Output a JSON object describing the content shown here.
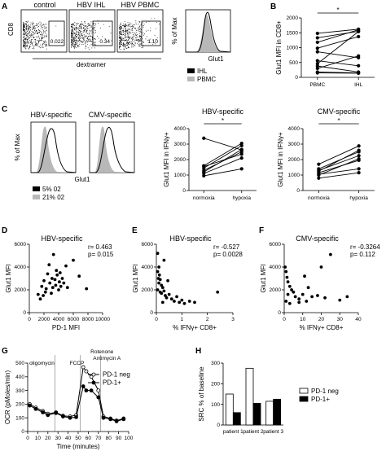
{
  "panels": {
    "A": {
      "label": "A",
      "flow": {
        "plot_titles": [
          "control",
          "HBV IHL",
          "HBV PBMC"
        ],
        "gate_values": [
          "0.022",
          "0.34",
          "1.10"
        ],
        "ylabel": "CD8",
        "xlabel": "dextramer"
      },
      "histogram": {
        "ylabel": "% of Max",
        "xlabel": "Glut1",
        "legend": [
          "IHL",
          "PBMC"
        ],
        "colors": {
          "IHL": "#000000",
          "PBMC": "#b8b8b8"
        }
      }
    },
    "B": {
      "label": "B"
    },
    "C": {
      "label": "C",
      "histogram_titles": [
        "HBV-specific",
        "CMV-specific"
      ],
      "histogram_ylabel": "% of Max",
      "histogram_xlabel": "Glut1",
      "legend": [
        "5% 02",
        "21% 02"
      ]
    },
    "D": {
      "label": "D"
    },
    "E": {
      "label": "E"
    },
    "F": {
      "label": "F"
    },
    "G": {
      "label": "G",
      "phases": [
        "oligomycin",
        "FCCP",
        "Rotenone",
        "Antimycin A"
      ]
    },
    "H": {
      "label": "H"
    }
  },
  "chart_data": [
    {
      "id": "B",
      "type": "line",
      "subtype": "paired",
      "categories": [
        "PBMC",
        "IHL"
      ],
      "ylabel": "Glut1 MFI in CD8+",
      "ylim": [
        0,
        2000
      ],
      "yticks": [
        0,
        500,
        1000,
        1500,
        2000
      ],
      "significance": "*",
      "pairs": [
        [
          1480,
          1620
        ],
        [
          1330,
          1550
        ],
        [
          1180,
          1600
        ],
        [
          980,
          1370
        ],
        [
          860,
          660
        ],
        [
          560,
          390
        ],
        [
          460,
          1540
        ],
        [
          380,
          180
        ],
        [
          300,
          720
        ],
        [
          180,
          150
        ],
        [
          150,
          140
        ]
      ]
    },
    {
      "id": "C-HBV",
      "type": "line",
      "subtype": "paired",
      "title": "HBV-specific",
      "categories": [
        "normoxia",
        "hypoxia"
      ],
      "ylabel": "Glut1 MFI in IFNγ+",
      "ylim": [
        0,
        4000
      ],
      "yticks": [
        0,
        1000,
        2000,
        3000,
        4000
      ],
      "significance": "*",
      "pairs": [
        [
          3380,
          2620
        ],
        [
          1600,
          3050
        ],
        [
          1550,
          2350
        ],
        [
          1450,
          2900
        ],
        [
          1300,
          2500
        ],
        [
          1200,
          2650
        ],
        [
          1100,
          2100
        ],
        [
          950,
          1400
        ]
      ]
    },
    {
      "id": "C-CMV",
      "type": "line",
      "subtype": "paired",
      "title": "CMV-specific",
      "categories": [
        "normoxia",
        "hypoxia"
      ],
      "ylabel": "Glut1 MFI in IFNγ+",
      "ylim": [
        0,
        4000
      ],
      "yticks": [
        0,
        1000,
        2000,
        3000,
        4000
      ],
      "significance": "*",
      "pairs": [
        [
          1700,
          2880
        ],
        [
          1400,
          2500
        ],
        [
          1300,
          2250
        ],
        [
          1250,
          2600
        ],
        [
          1150,
          1950
        ],
        [
          1050,
          1400
        ],
        [
          1000,
          2050
        ],
        [
          800,
          1150
        ]
      ]
    },
    {
      "id": "D",
      "type": "scatter",
      "title": "HBV-specific",
      "xlabel": "PD-1 MFI",
      "ylabel": "Glut1 MFI",
      "xlim": [
        0,
        10000
      ],
      "xticks": [
        0,
        2000,
        4000,
        6000,
        8000,
        10000
      ],
      "ylim": [
        0,
        6000
      ],
      "yticks": [
        0,
        2000,
        4000,
        6000
      ],
      "stats": [
        "r= 0.463",
        "p= 0.015"
      ],
      "points": [
        [
          1200,
          1600
        ],
        [
          1500,
          1200
        ],
        [
          1700,
          2300
        ],
        [
          1900,
          1500
        ],
        [
          2000,
          2800
        ],
        [
          2200,
          1800
        ],
        [
          2300,
          2100
        ],
        [
          2500,
          3400
        ],
        [
          2700,
          4200
        ],
        [
          2800,
          2600
        ],
        [
          3000,
          1700
        ],
        [
          3100,
          3000
        ],
        [
          3200,
          2200
        ],
        [
          3300,
          5100
        ],
        [
          3500,
          2900
        ],
        [
          3600,
          2400
        ],
        [
          3700,
          3700
        ],
        [
          3800,
          3300
        ],
        [
          4000,
          2000
        ],
        [
          4100,
          2700
        ],
        [
          4200,
          3500
        ],
        [
          4300,
          2300
        ],
        [
          4500,
          3000
        ],
        [
          4700,
          2600
        ],
        [
          5000,
          4100
        ],
        [
          5200,
          2200
        ],
        [
          6000,
          4600
        ],
        [
          6800,
          3200
        ],
        [
          7800,
          2100
        ]
      ]
    },
    {
      "id": "E",
      "type": "scatter",
      "title": "HBV-specific",
      "xlabel": "% IFNγ+ CD8+",
      "ylabel": "Glut1 MFI",
      "xlim": [
        0,
        3
      ],
      "xticks": [
        0,
        1,
        2,
        3
      ],
      "ylim": [
        0,
        6000
      ],
      "yticks": [
        0,
        2000,
        4000,
        6000
      ],
      "stats": [
        "r= -0.527",
        "p= 0.0028"
      ],
      "points": [
        [
          0.05,
          5200
        ],
        [
          0.1,
          4000
        ],
        [
          0.05,
          3600
        ],
        [
          0.12,
          3300
        ],
        [
          0.08,
          3000
        ],
        [
          0.15,
          2900
        ],
        [
          0.1,
          2600
        ],
        [
          0.2,
          2400
        ],
        [
          0.25,
          2200
        ],
        [
          0.05,
          2000
        ],
        [
          0.3,
          1900
        ],
        [
          0.2,
          1700
        ],
        [
          0.35,
          1500
        ],
        [
          0.4,
          1300
        ],
        [
          0.5,
          1600
        ],
        [
          0.3,
          4600
        ],
        [
          0.15,
          1800
        ],
        [
          0.6,
          1200
        ],
        [
          0.7,
          1000
        ],
        [
          0.8,
          1400
        ],
        [
          0.9,
          900
        ],
        [
          1.0,
          1100
        ],
        [
          1.1,
          800
        ],
        [
          1.3,
          1000
        ],
        [
          1.5,
          900
        ],
        [
          0.45,
          2800
        ],
        [
          0.25,
          900
        ],
        [
          2.4,
          1800
        ]
      ]
    },
    {
      "id": "F",
      "type": "scatter",
      "title": "CMV-specific",
      "xlabel": "% IFNγ+ CD8+",
      "ylabel": "Glut1 MFI",
      "xlim": [
        0,
        40
      ],
      "xticks": [
        0,
        10,
        20,
        30,
        40
      ],
      "ylim": [
        0,
        6000
      ],
      "yticks": [
        0,
        2000,
        4000,
        6000
      ],
      "stats": [
        "r= -0.3264",
        "p= 0.112"
      ],
      "points": [
        [
          0.5,
          4000
        ],
        [
          1,
          3600
        ],
        [
          1.5,
          3100
        ],
        [
          2,
          2700
        ],
        [
          3,
          2300
        ],
        [
          4,
          2000
        ],
        [
          2,
          1600
        ],
        [
          5,
          1800
        ],
        [
          6,
          1400
        ],
        [
          1,
          1000
        ],
        [
          8,
          1200
        ],
        [
          10,
          1600
        ],
        [
          11,
          3200
        ],
        [
          12,
          1000
        ],
        [
          13,
          2200
        ],
        [
          15,
          1400
        ],
        [
          18,
          1500
        ],
        [
          20,
          4000
        ],
        [
          22,
          1300
        ],
        [
          25,
          5100
        ],
        [
          30,
          1100
        ],
        [
          34,
          1400
        ],
        [
          8,
          900
        ],
        [
          3,
          800
        ]
      ]
    },
    {
      "id": "G",
      "type": "line",
      "xlabel": "Time (minutes)",
      "ylabel": "OCR (pMoles/min)",
      "xlim": [
        0,
        100
      ],
      "xticks": [
        0,
        10,
        20,
        30,
        40,
        50,
        60,
        70,
        80,
        90,
        100
      ],
      "ylim": [
        0,
        500
      ],
      "yticks": [
        0,
        100,
        200,
        300,
        400,
        500
      ],
      "injections": [
        27,
        52,
        72
      ],
      "series": [
        {
          "name": "PD-1 neg",
          "marker": "open-circle",
          "x": [
            2,
            8,
            15,
            20,
            28,
            35,
            42,
            48,
            55,
            58,
            63,
            70,
            75,
            82,
            88,
            95
          ],
          "y": [
            200,
            175,
            150,
            130,
            140,
            115,
            110,
            120,
            470,
            440,
            400,
            300,
            110,
            95,
            80,
            95
          ]
        },
        {
          "name": "PD-1+",
          "marker": "filled-circle",
          "x": [
            2,
            8,
            15,
            20,
            28,
            35,
            42,
            48,
            55,
            58,
            63,
            70,
            75,
            82,
            88,
            95
          ],
          "y": [
            190,
            165,
            140,
            120,
            135,
            110,
            100,
            105,
            330,
            300,
            300,
            250,
            100,
            90,
            75,
            90
          ]
        }
      ]
    },
    {
      "id": "H",
      "type": "bar",
      "ylabel": "SRC % of baseline",
      "categories": [
        "patient 1",
        "patient 2",
        "patient 3"
      ],
      "ylim": [
        0,
        300
      ],
      "yticks": [
        0,
        100,
        200,
        300
      ],
      "series": [
        {
          "name": "PD-1 neg",
          "color": "#ffffff",
          "values": [
            150,
            275,
            115
          ]
        },
        {
          "name": "PD-1+",
          "color": "#000000",
          "values": [
            60,
            105,
            125
          ]
        }
      ]
    }
  ]
}
